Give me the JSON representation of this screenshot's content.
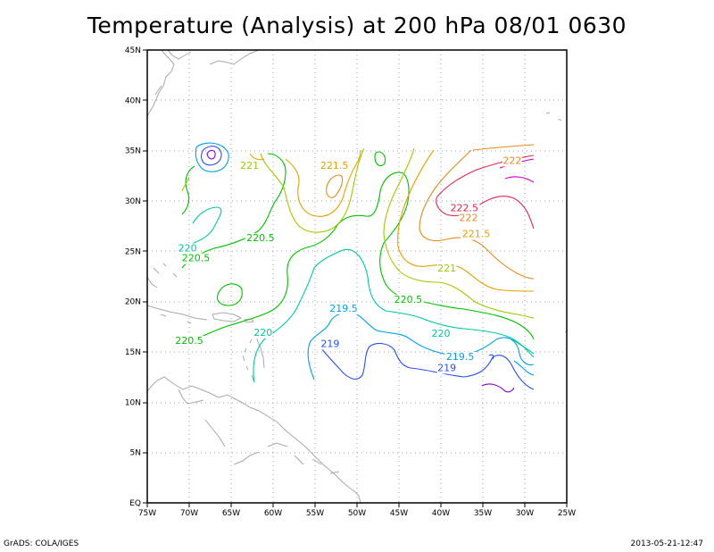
{
  "title": "Temperature (Analysis) at 200 hPa 08/01 0630",
  "footer": {
    "left": "GrADS: COLA/IGES",
    "right": "2013-05-21-12:47"
  },
  "axes": {
    "lon_labels": [
      "75W",
      "70W",
      "65W",
      "60W",
      "55W",
      "50W",
      "45W",
      "40W",
      "35W",
      "30W",
      "25W"
    ],
    "lat_labels": [
      "EQ",
      "5N",
      "10N",
      "15N",
      "20N",
      "25N",
      "30N",
      "35N",
      "40N",
      "45N"
    ],
    "lon_range": [
      -75,
      -25
    ],
    "lat_range": [
      0,
      45
    ]
  },
  "contour_labels": [
    {
      "text": "221",
      "lon": -62.8,
      "lat": 33.2,
      "color": "#a0c800"
    },
    {
      "text": "221.5",
      "lon": -52.7,
      "lat": 33.2,
      "color": "#e6a000"
    },
    {
      "text": "222",
      "lon": -31.5,
      "lat": 33.7,
      "color": "#e08c20"
    },
    {
      "text": "222.5",
      "lon": -37.2,
      "lat": 29.0,
      "color": "#dc2850"
    },
    {
      "text": "222",
      "lon": -36.7,
      "lat": 28.0,
      "color": "#e08c20"
    },
    {
      "text": "221.5",
      "lon": -35.8,
      "lat": 26.4,
      "color": "#e6a000"
    },
    {
      "text": "221",
      "lon": -39.3,
      "lat": 23.0,
      "color": "#a0c800"
    },
    {
      "text": "220.5",
      "lon": -61.5,
      "lat": 26.0,
      "color": "#00c000"
    },
    {
      "text": "220",
      "lon": -70.2,
      "lat": 25.0,
      "color": "#00c8a0"
    },
    {
      "text": "220.5",
      "lon": -69.2,
      "lat": 24.0,
      "color": "#00c000"
    },
    {
      "text": "220.5",
      "lon": -43.9,
      "lat": 19.9,
      "color": "#00c000"
    },
    {
      "text": "219.5",
      "lon": -51.6,
      "lat": 19.0,
      "color": "#00a0e6"
    },
    {
      "text": "220",
      "lon": -40.0,
      "lat": 16.5,
      "color": "#00c8a0"
    },
    {
      "text": "220",
      "lon": -61.2,
      "lat": 16.6,
      "color": "#00c8a0"
    },
    {
      "text": "220.5",
      "lon": -70.0,
      "lat": 15.8,
      "color": "#00c000"
    },
    {
      "text": "219",
      "lon": -53.2,
      "lat": 15.5,
      "color": "#2850e6"
    },
    {
      "text": "219.5",
      "lon": -37.7,
      "lat": 14.2,
      "color": "#00a0e6"
    },
    {
      "text": "219",
      "lon": -39.3,
      "lat": 13.1,
      "color": "#2850e6"
    }
  ]
}
